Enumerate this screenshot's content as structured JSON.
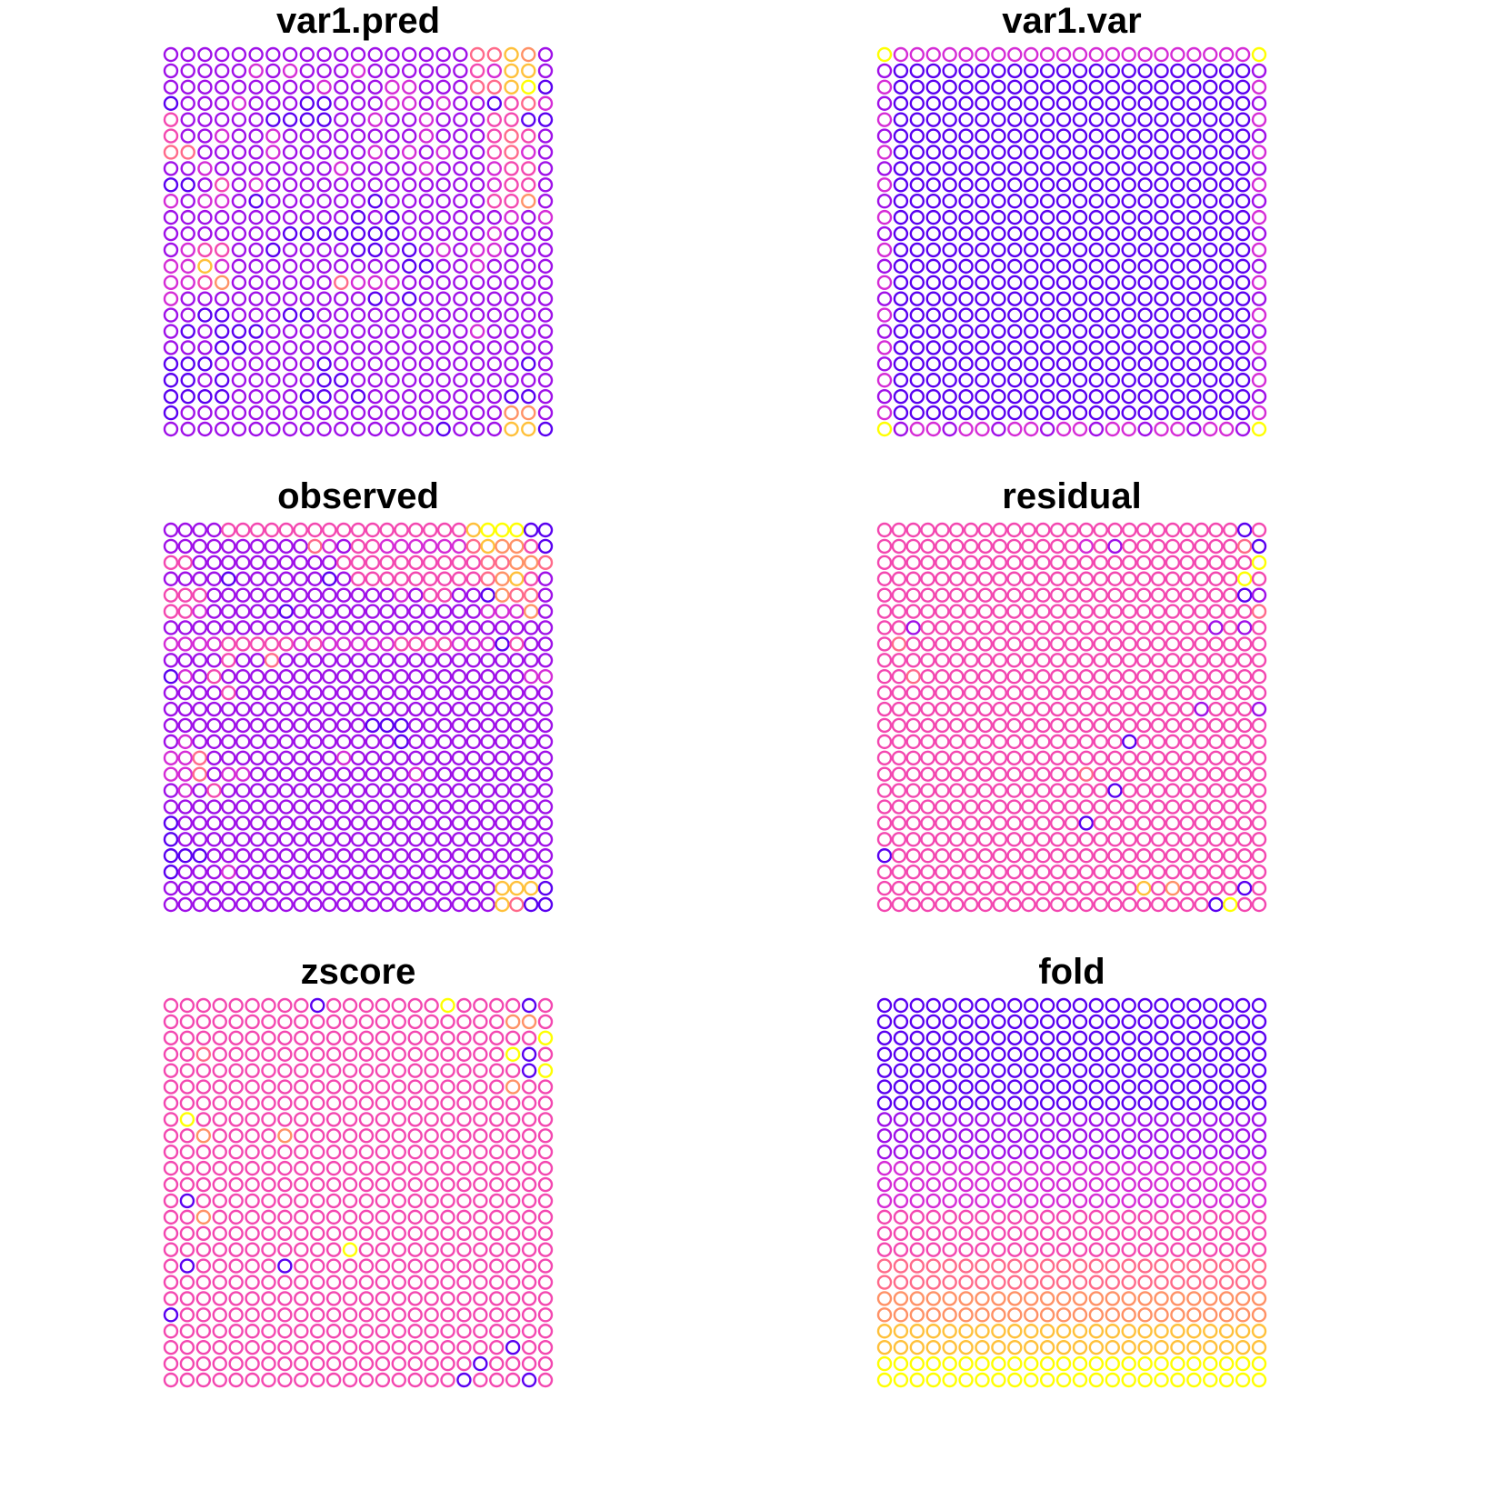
{
  "palette": [
    "#0000FF",
    "#5A00F0",
    "#9F10E8",
    "#D52CD6",
    "#F347B0",
    "#FF6A8A",
    "#FF9166",
    "#FFC03A",
    "#FFFF00"
  ],
  "grid": {
    "rows": 24,
    "cols": 24
  },
  "chart_data": [
    {
      "type": "scatter",
      "title": "var1.pred",
      "rows": [
        "22222222222222222255762",
        "22222323222322222243772",
        "22222222232223322255781",
        "12223222112223323221453",
        "42222211112232232224411",
        "42232232222222232224542",
        "55222232222232323224532",
        "22322222223222232223442",
        "11242322222222222223442",
        "32332122222212222224462",
        "22222222222121222222323",
        "22222221111111222223222",
        "23442212222112123233222",
        "33732222222222112232222",
        "33462222225333222222222",
        "32222222222212122222222",
        "22112221122222222222222",
        "21211122222222222232222",
        "22211222222222222222222",
        "11122222212222222222212",
        "11212222211222222222222",
        "11112222112122222222112",
        "12222222222222222222662",
        "22222222222222221222771"
      ]
    },
    {
      "type": "scatter",
      "title": "var1.var",
      "rows": [
        "833333333333333333333338",
        "211111111111111111111112",
        "311111111111111111111113",
        "211111111111111111111112",
        "311111111111111111111113",
        "211111111111111111111112",
        "311111111111111111111113",
        "211111111111111111111112",
        "311111111111111111111113",
        "211111111111111111111112",
        "311111111111111111111113",
        "211111111111111111111112",
        "311111111111111111111113",
        "211111111111111111111112",
        "311111111111111111111113",
        "211111111111111111111112",
        "311111111111111111111113",
        "211111111111111111111112",
        "311111111111111111111113",
        "211111111111111111111112",
        "311111111111111111111113",
        "211111111111111111111112",
        "311111111111111111111113",
        "823323323323323323323328"
      ]
    },
    {
      "type": "scatter",
      "title": "observed",
      "rows": [
        "222244444444444444444788811",
        "222222222253244333333576641",
        "442222222222444444444455665",
        "222212222221244444444456742",
        "444222222222222232442216552",
        "443222221222222222222233362",
        "222222222222222222222222222",
        "333344444343333344443331422",
        "222242252222222222222222222",
        "132422222222222222222222233",
        "222242222222222222222222222",
        "222222222222222222222222222",
        "222222222222221112222222222",
        "232222222222222212222222222",
        "335222222222322222222222222",
        "335233222222222223222222222",
        "232422222222222222222222222",
        "222222222222222222222222222",
        "122222222222222222222222222",
        "122222222222222222222222222",
        "111222222222222222222222222",
        "122232222222222222222222222",
        "222222222222222222222227771",
        "222222222222222222222227511"
      ]
    },
    {
      "type": "scatter",
      "title": "residual",
      "rows": [
        "444444444444444444444444414",
        "444444444444443424444444451",
        "444444444444444444444444448",
        "444444444444444444444444484",
        "444444444444444444444444412",
        "444444444444444444444444445",
        "442444444444444444444442424",
        "454444444444444444444444444",
        "444444444444444444444444444",
        "445444444444444444444444444",
        "444444444444444444444444444",
        "444444444444444444444424442",
        "444444444444444444444444444",
        "444444444444444441444444444",
        "444444444444444444444444444",
        "444444444444445444444444444",
        "444444444444444414444444444",
        "444444444444444444444444444",
        "444444444444441444444444444",
        "444444444444444444444444444",
        "144444444444444444444444444",
        "444444444444444444444444444",
        "444444444444444444746444414",
        "444444444444444444444441844"
      ]
    },
    {
      "type": "scatter",
      "title": "zscore",
      "rows": [
        "444444444144444448444414",
        "444444444444444444444664",
        "444444444444444444444448",
        "445444444444444444444814",
        "444444444444444444444418",
        "444444444444444444444644",
        "444444444444444444444444",
        "484444444444444444444444",
        "446444464444444444444444",
        "444444444444444444444444",
        "444444444444444444444444",
        "444444444444444444444444",
        "414444444444444444444444",
        "446444444444444444444444",
        "444444444444444444444444",
        "444444444448444444444444",
        "414444414444444444444444",
        "444444444444444444444444",
        "444444444444444444444444",
        "144444444444444444444444",
        "444444444444444444444444",
        "444444444444444444444144",
        "444444444444444444414444",
        "444444444444444444144414"
      ]
    },
    {
      "type": "scatter",
      "title": "fold",
      "rows": [
        "111111111111111111111111",
        "111111111111111111111111",
        "111111111111111111111111",
        "111111111111111111111111",
        "111111111111111111111111",
        "111111111111111111111111",
        "111111111111111111111111",
        "222222222222222222222222",
        "222222222222222222222222",
        "222222222222222222222222",
        "333333333333333333333333",
        "333333333333333333333333",
        "333333333333333333333333",
        "444444444444444444444444",
        "444444444444444444444444",
        "444444444444444444444444",
        "555555555555555555555555",
        "555555555555555555555555",
        "666666666666666666666666",
        "666666666666666666666666",
        "777777777777777777777777",
        "777777777777777777777777",
        "888888888888888888888888",
        "888888888888888888888888"
      ]
    }
  ]
}
